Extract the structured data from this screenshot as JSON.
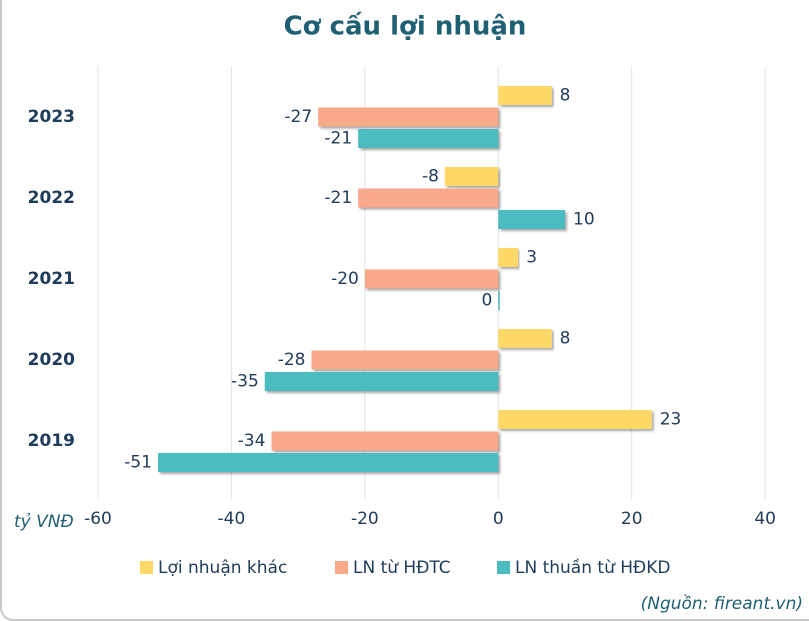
{
  "chart_data": {
    "type": "hbar",
    "title": "Cơ cấu lợi nhuận",
    "categories": [
      "2023",
      "2022",
      "2021",
      "2020",
      "2019"
    ],
    "series": [
      {
        "name": "Lợi nhuận khác",
        "color": "#fdd866",
        "values": [
          8,
          -8,
          3,
          8,
          23
        ]
      },
      {
        "name": "LN từ HĐTC",
        "color": "#f7a98a",
        "values": [
          -27,
          -21,
          -20,
          -28,
          -34
        ]
      },
      {
        "name": "LN thuần từ HĐKD",
        "color": "#4bbcbf",
        "values": [
          -21,
          10,
          0,
          -35,
          -51
        ]
      }
    ],
    "xlabel": "tỷ VNĐ",
    "xlim": [
      -60,
      45
    ],
    "xticks": [
      -60,
      -40,
      -20,
      0,
      20,
      40
    ],
    "grid": true,
    "source": "(Nguồn: fireant.vn)"
  }
}
